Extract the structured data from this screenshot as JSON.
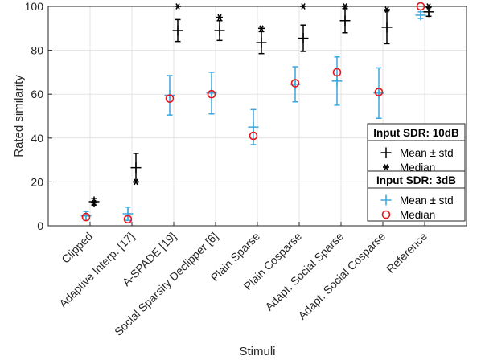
{
  "chart_data": {
    "type": "scatter",
    "title": "",
    "xlabel": "Stimuli",
    "ylabel": "Rated similarity",
    "ylim": [
      0,
      100
    ],
    "yticks": [
      0,
      20,
      40,
      60,
      80,
      100
    ],
    "grid": true,
    "categories": [
      "Clipped",
      "Adaptive Interp. [17]",
      "A-SPADE [19]",
      "Social Sparsity Declipper [6]",
      "Plain Sparse",
      "Plain Cosparse",
      "Adapt. Social Sparse",
      "Adapt. Social Cosparse",
      "Reference"
    ],
    "series": [
      {
        "group": "Input SDR: 10dB",
        "color": "#000000",
        "mean": [
          11,
          26.5,
          89,
          89,
          83.5,
          85.5,
          93.5,
          90.5,
          97.5
        ],
        "std": [
          1.5,
          6.5,
          5,
          4.5,
          5,
          6,
          5.5,
          7.5,
          2
        ],
        "median": [
          10.5,
          20,
          100,
          95,
          90,
          100,
          100,
          98.5,
          100
        ]
      },
      {
        "group": "Input SDR: 3dB",
        "color": "#3aa6dd",
        "mean": [
          4.5,
          5.5,
          59.5,
          60.5,
          45,
          64.5,
          66,
          60.5,
          96
        ],
        "std": [
          2,
          3,
          9,
          9.5,
          8,
          8,
          11,
          11.5,
          1.5
        ],
        "median": [
          4,
          3,
          58,
          60,
          41,
          65,
          70,
          61,
          100
        ]
      }
    ],
    "legend": [
      {
        "title": "Input SDR: 10dB",
        "placement": "right",
        "entries": [
          "Mean ± std",
          "Median"
        ]
      },
      {
        "title": "Input SDR: 3dB",
        "placement": "right",
        "entries": [
          "Mean ± std",
          "Median"
        ]
      }
    ]
  }
}
